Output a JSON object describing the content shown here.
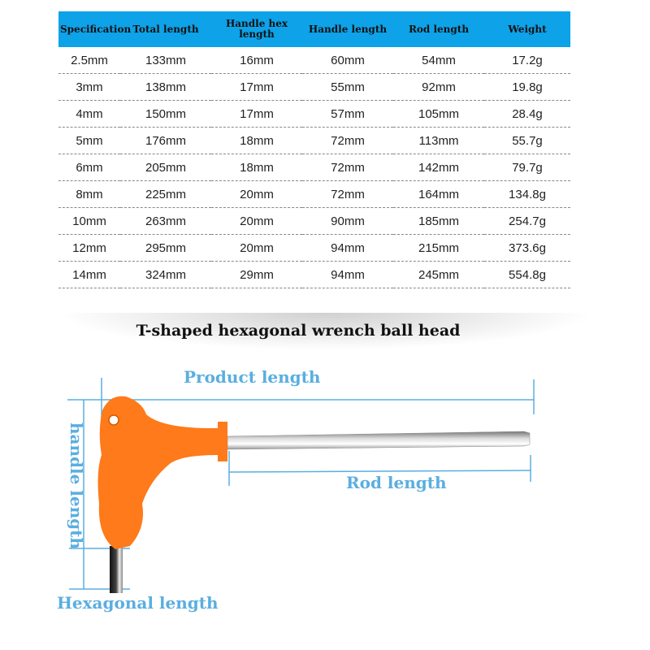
{
  "table": {
    "headers": [
      "Specification",
      "Total length",
      "Handle hex length",
      "Handle length",
      "Rod length",
      "Weight"
    ],
    "rows": [
      [
        "2.5mm",
        "133mm",
        "16mm",
        "60mm",
        "54mm",
        "17.2g"
      ],
      [
        "3mm",
        "138mm",
        "17mm",
        "55mm",
        "92mm",
        "19.8g"
      ],
      [
        "4mm",
        "150mm",
        "17mm",
        "57mm",
        "105mm",
        "28.4g"
      ],
      [
        "5mm",
        "176mm",
        "18mm",
        "72mm",
        "113mm",
        "55.7g"
      ],
      [
        "6mm",
        "205mm",
        "18mm",
        "72mm",
        "142mm",
        "79.7g"
      ],
      [
        "8mm",
        "225mm",
        "20mm",
        "72mm",
        "164mm",
        "134.8g"
      ],
      [
        "10mm",
        "263mm",
        "20mm",
        "90mm",
        "185mm",
        "254.7g"
      ],
      [
        "12mm",
        "295mm",
        "20mm",
        "94mm",
        "215mm",
        "373.6g"
      ],
      [
        "14mm",
        "324mm",
        "29mm",
        "94mm",
        "245mm",
        "554.8g"
      ]
    ]
  },
  "title": "T-shaped hexagonal wrench ball head",
  "diagram": {
    "product_length": "Product length",
    "rod_length": "Rod length",
    "handle_length": "handle length",
    "hexagonal_length": "Hexagonal length"
  },
  "colors": {
    "header_bg": "#0ea2e8",
    "dimension": "#5aaee0",
    "handle": "#ff7a1a"
  }
}
